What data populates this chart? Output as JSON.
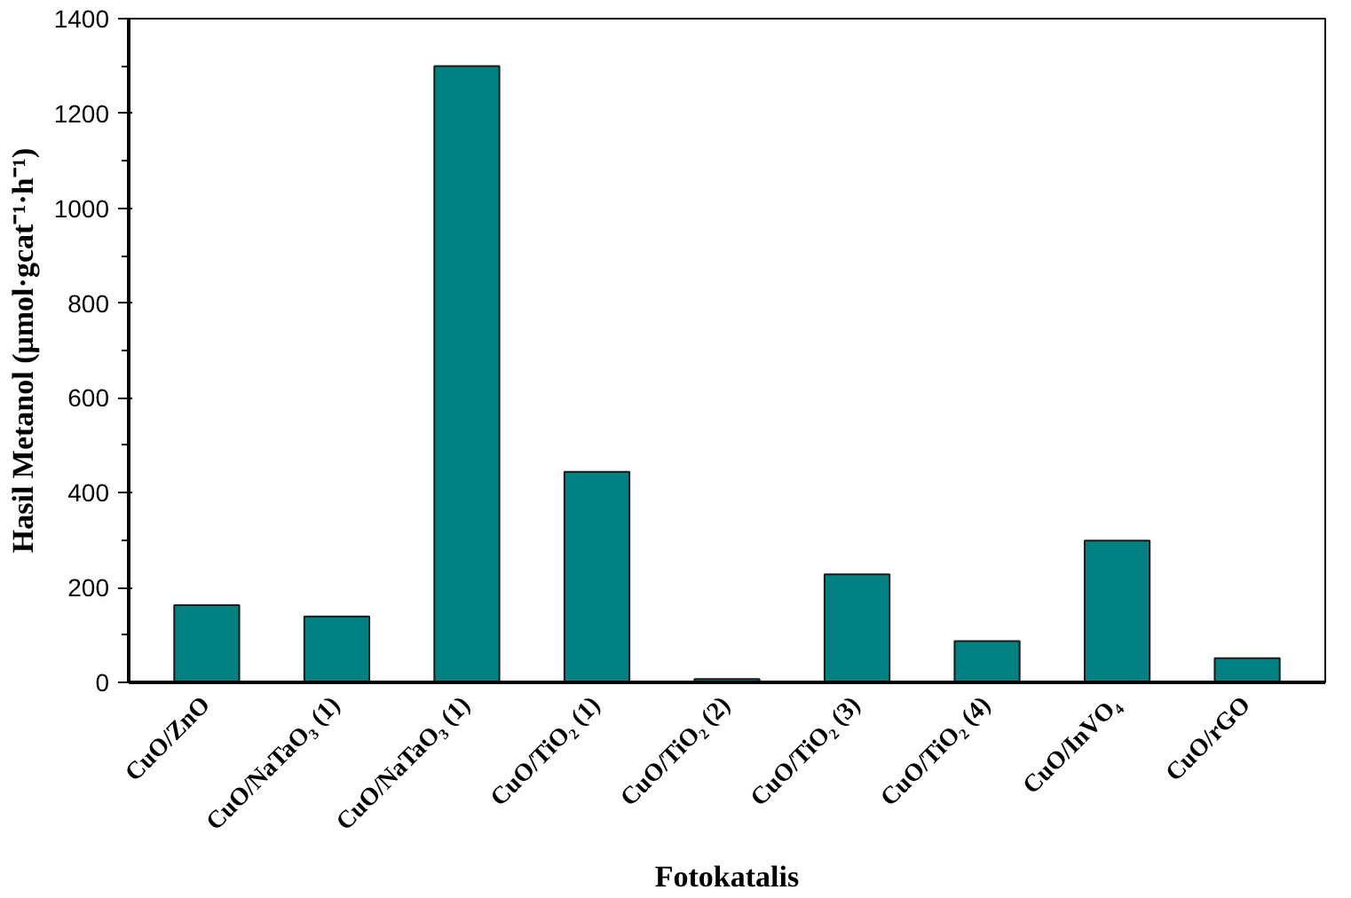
{
  "chart_data": {
    "type": "bar",
    "xlabel": "Fotokatalis",
    "ylabel": "Hasil Metanol (μmol·gcat⁻¹·h⁻¹)",
    "categories": [
      "CuO/ZnO",
      "CuO/NaTaO₃ (1)",
      "CuO/NaTaO₃ (1)",
      "CuO/TiO₂ (1)",
      "CuO/TiO₂ (2)",
      "CuO/TiO₂ (3)",
      "CuO/TiO₂ (4)",
      "CuO/InVO₄",
      "CuO/rGO"
    ],
    "values": [
      163,
      139,
      1300,
      444,
      7,
      228,
      87,
      299,
      51
    ],
    "color": "#008080",
    "ylim": [
      0,
      1400
    ],
    "yticks": [
      0,
      200,
      400,
      600,
      800,
      1000,
      1200,
      1400
    ],
    "grid": false
  }
}
